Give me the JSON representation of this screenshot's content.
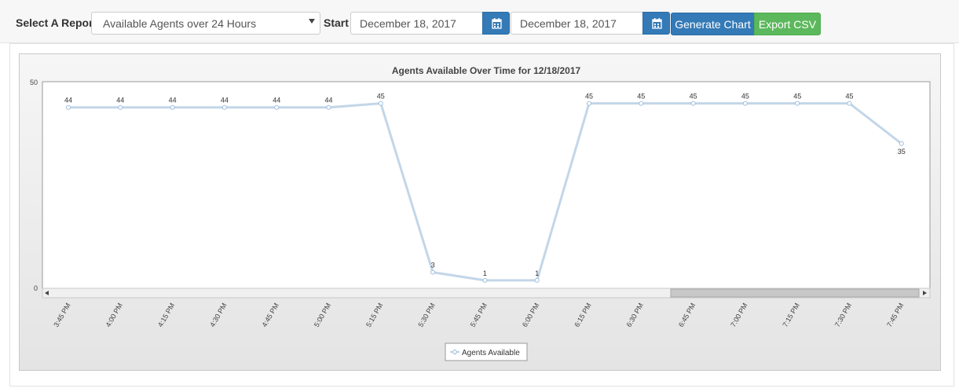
{
  "toolbar": {
    "report_label": "Select A Report",
    "report_selected": "Available Agents over 24 Hours",
    "start_label": "Start",
    "start_date": "December 18, 2017",
    "end_date": "December 18, 2017",
    "generate_label": "Generate Chart",
    "export_label": "Export CSV"
  },
  "colors": {
    "primary": "#337ab7",
    "success": "#5cb85c",
    "series_line": "#c3d6e8"
  },
  "chart_data": {
    "type": "line",
    "title": "Agents Available Over Time for 12/18/2017",
    "categories": [
      "3:45 PM",
      "4:00 PM",
      "4:15 PM",
      "4:30 PM",
      "4:45 PM",
      "5:00 PM",
      "5:15 PM",
      "5:30 PM",
      "5:45 PM",
      "6:00 PM",
      "6:15 PM",
      "6:30 PM",
      "6:45 PM",
      "7:00 PM",
      "7:15 PM",
      "7:30 PM",
      "7:45 PM"
    ],
    "series": [
      {
        "name": "Agents Available",
        "values": [
          44,
          44,
          44,
          44,
          44,
          44,
          45,
          3,
          1,
          1,
          45,
          45,
          45,
          45,
          45,
          45,
          35
        ]
      }
    ],
    "y_ticks": [
      "50",
      "0"
    ],
    "ylim": [
      0,
      50
    ],
    "grid": false,
    "legend": "bottom-center"
  }
}
